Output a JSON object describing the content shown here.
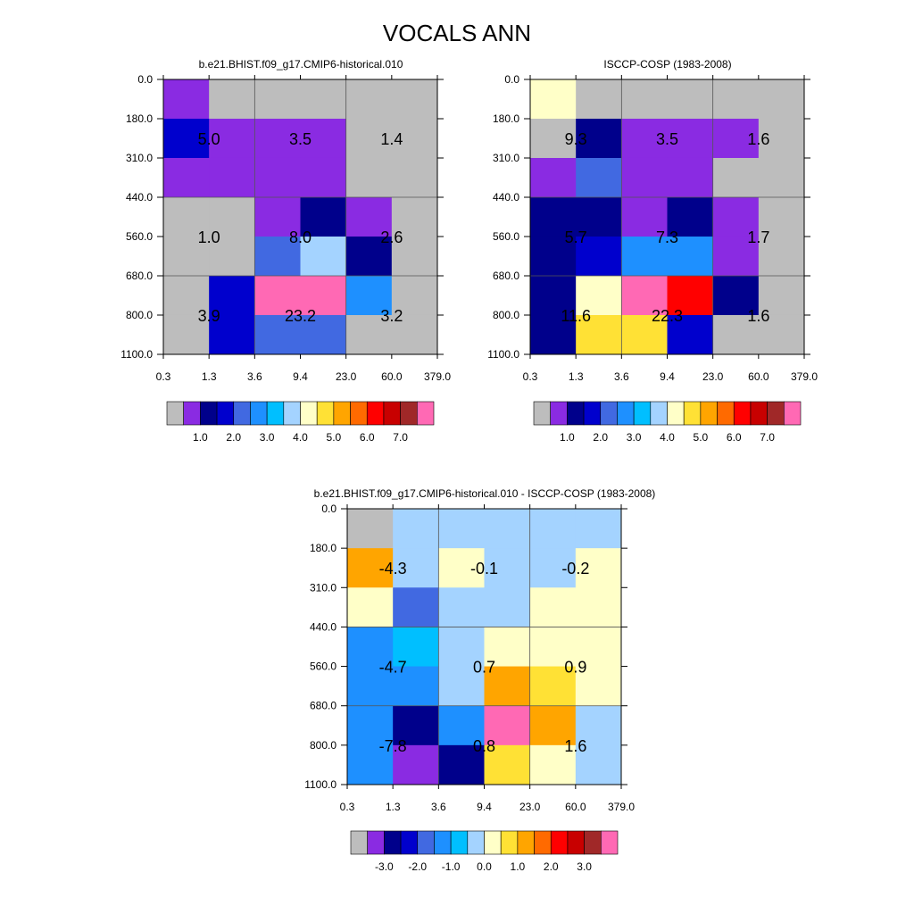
{
  "title": "VOCALS ANN",
  "palettes": {
    "abs": [
      "#bdbdbd",
      "#8a2be2",
      "#00008b",
      "#0000cd",
      "#4169e1",
      "#1e90ff",
      "#00bfff",
      "#a4d3ff",
      "#ffffc8",
      "#ffe135",
      "#ffa500",
      "#ff6a00",
      "#ff0000",
      "#c80000",
      "#a02828",
      "#ff69b4"
    ],
    "diff": [
      "#bdbdbd",
      "#8a2be2",
      "#00008b",
      "#0000cd",
      "#4169e1",
      "#1e90ff",
      "#00bfff",
      "#a4d3ff",
      "#ffffc8",
      "#ffe135",
      "#ffa500",
      "#ff6a00",
      "#ff0000",
      "#c80000",
      "#a02828",
      "#ff69b4"
    ]
  },
  "chart_data": [
    {
      "type": "heatmap",
      "id": "model",
      "title": "b.e21.BHIST.f09_g17.CMIP6-historical.010",
      "x_tick_labels": [
        "0.3",
        "1.3",
        "3.6",
        "9.4",
        "23.0",
        "60.0",
        "379.0"
      ],
      "y_tick_labels": [
        "0.0",
        "180.0",
        "310.0",
        "440.0",
        "560.0",
        "680.0",
        "800.0",
        "1100.0"
      ],
      "palette": "abs",
      "cells": [
        [
          1,
          0,
          0,
          0,
          0,
          0
        ],
        [
          3,
          1,
          1,
          1,
          0,
          0
        ],
        [
          1,
          1,
          1,
          1,
          0,
          0
        ],
        [
          0,
          0,
          1,
          2,
          1,
          0
        ],
        [
          0,
          0,
          4,
          7,
          2,
          0
        ],
        [
          0,
          3,
          15,
          15,
          5,
          0
        ],
        [
          0,
          3,
          4,
          4,
          0,
          0
        ]
      ],
      "box_labels": [
        [
          "5.0",
          "3.5",
          "1.4"
        ],
        [
          "1.0",
          "8.0",
          "2.6"
        ],
        [
          "3.9",
          "23.2",
          "3.2"
        ]
      ],
      "colorbar": {
        "labels": [
          "1.0",
          "2.0",
          "3.0",
          "4.0",
          "5.0",
          "6.0",
          "7.0"
        ],
        "label_start": 1
      }
    },
    {
      "type": "heatmap",
      "id": "obs",
      "title": "ISCCP-COSP (1983-2008)",
      "x_tick_labels": [
        "0.3",
        "1.3",
        "3.6",
        "9.4",
        "23.0",
        "60.0",
        "379.0"
      ],
      "y_tick_labels": [
        "0.0",
        "180.0",
        "310.0",
        "440.0",
        "560.0",
        "680.0",
        "800.0",
        "1100.0"
      ],
      "palette": "abs",
      "cells": [
        [
          8,
          0,
          0,
          0,
          0,
          0
        ],
        [
          0,
          2,
          1,
          1,
          1,
          0
        ],
        [
          1,
          4,
          1,
          1,
          0,
          0
        ],
        [
          2,
          2,
          1,
          2,
          1,
          0
        ],
        [
          2,
          3,
          5,
          5,
          1,
          0
        ],
        [
          2,
          8,
          15,
          12,
          2,
          0
        ],
        [
          2,
          9,
          9,
          3,
          0,
          0
        ]
      ],
      "box_labels": [
        [
          "9.3",
          "3.5",
          "1.6"
        ],
        [
          "5.7",
          "7.3",
          "1.7"
        ],
        [
          "11.6",
          "22.3",
          "1.6"
        ]
      ],
      "colorbar": {
        "labels": [
          "1.0",
          "2.0",
          "3.0",
          "4.0",
          "5.0",
          "6.0",
          "7.0"
        ],
        "label_start": 1
      }
    },
    {
      "type": "heatmap",
      "id": "diff",
      "title": "b.e21.BHIST.f09_g17.CMIP6-historical.010 - ISCCP-COSP (1983-2008)",
      "x_tick_labels": [
        "0.3",
        "1.3",
        "3.6",
        "9.4",
        "23.0",
        "60.0",
        "379.0"
      ],
      "y_tick_labels": [
        "0.0",
        "180.0",
        "310.0",
        "440.0",
        "560.0",
        "680.0",
        "800.0",
        "1100.0"
      ],
      "palette": "diff",
      "cells": [
        [
          0,
          7,
          7,
          7,
          7,
          7
        ],
        [
          10,
          7,
          8,
          7,
          7,
          8
        ],
        [
          8,
          4,
          7,
          7,
          8,
          8
        ],
        [
          5,
          6,
          7,
          8,
          8,
          8
        ],
        [
          5,
          5,
          7,
          10,
          9,
          8
        ],
        [
          5,
          2,
          5,
          15,
          10,
          7
        ],
        [
          5,
          1,
          2,
          9,
          8,
          7
        ]
      ],
      "box_labels": [
        [
          "-4.3",
          "-0.1",
          "-0.2"
        ],
        [
          "-4.7",
          "0.7",
          "0.9"
        ],
        [
          "-7.8",
          "0.8",
          "1.6"
        ]
      ],
      "colorbar": {
        "labels": [
          "-3.0",
          "-2.0",
          "-1.0",
          "0.0",
          "1.0",
          "2.0",
          "3.0"
        ],
        "label_start": 1
      }
    }
  ]
}
